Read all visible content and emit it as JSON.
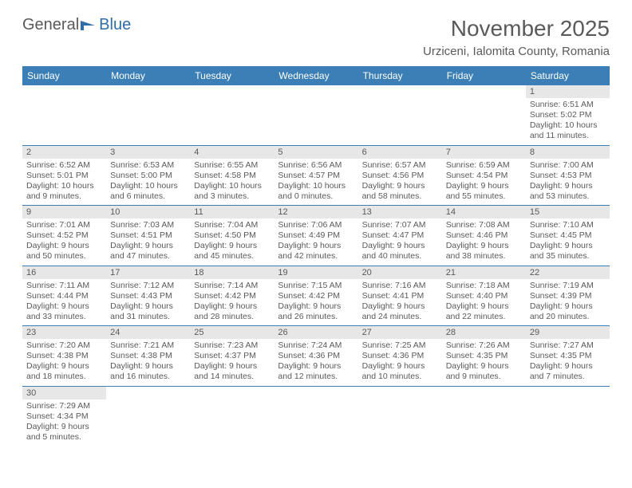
{
  "logo": {
    "text1": "General",
    "text2": "Blue"
  },
  "title": "November 2025",
  "location": "Urziceni, Ialomita County, Romania",
  "headers": [
    "Sunday",
    "Monday",
    "Tuesday",
    "Wednesday",
    "Thursday",
    "Friday",
    "Saturday"
  ],
  "colors": {
    "header_bg": "#3b7fb6",
    "header_fg": "#ffffff",
    "daynum_bg": "#e7e7e7",
    "text": "#5a5a5a",
    "logo_blue": "#2f6fa8"
  },
  "weeks": [
    [
      null,
      null,
      null,
      null,
      null,
      null,
      {
        "n": "1",
        "sr": "6:51 AM",
        "ss": "5:02 PM",
        "dl": "10 hours and 11 minutes."
      }
    ],
    [
      {
        "n": "2",
        "sr": "6:52 AM",
        "ss": "5:01 PM",
        "dl": "10 hours and 9 minutes."
      },
      {
        "n": "3",
        "sr": "6:53 AM",
        "ss": "5:00 PM",
        "dl": "10 hours and 6 minutes."
      },
      {
        "n": "4",
        "sr": "6:55 AM",
        "ss": "4:58 PM",
        "dl": "10 hours and 3 minutes."
      },
      {
        "n": "5",
        "sr": "6:56 AM",
        "ss": "4:57 PM",
        "dl": "10 hours and 0 minutes."
      },
      {
        "n": "6",
        "sr": "6:57 AM",
        "ss": "4:56 PM",
        "dl": "9 hours and 58 minutes."
      },
      {
        "n": "7",
        "sr": "6:59 AM",
        "ss": "4:54 PM",
        "dl": "9 hours and 55 minutes."
      },
      {
        "n": "8",
        "sr": "7:00 AM",
        "ss": "4:53 PM",
        "dl": "9 hours and 53 minutes."
      }
    ],
    [
      {
        "n": "9",
        "sr": "7:01 AM",
        "ss": "4:52 PM",
        "dl": "9 hours and 50 minutes."
      },
      {
        "n": "10",
        "sr": "7:03 AM",
        "ss": "4:51 PM",
        "dl": "9 hours and 47 minutes."
      },
      {
        "n": "11",
        "sr": "7:04 AM",
        "ss": "4:50 PM",
        "dl": "9 hours and 45 minutes."
      },
      {
        "n": "12",
        "sr": "7:06 AM",
        "ss": "4:49 PM",
        "dl": "9 hours and 42 minutes."
      },
      {
        "n": "13",
        "sr": "7:07 AM",
        "ss": "4:47 PM",
        "dl": "9 hours and 40 minutes."
      },
      {
        "n": "14",
        "sr": "7:08 AM",
        "ss": "4:46 PM",
        "dl": "9 hours and 38 minutes."
      },
      {
        "n": "15",
        "sr": "7:10 AM",
        "ss": "4:45 PM",
        "dl": "9 hours and 35 minutes."
      }
    ],
    [
      {
        "n": "16",
        "sr": "7:11 AM",
        "ss": "4:44 PM",
        "dl": "9 hours and 33 minutes."
      },
      {
        "n": "17",
        "sr": "7:12 AM",
        "ss": "4:43 PM",
        "dl": "9 hours and 31 minutes."
      },
      {
        "n": "18",
        "sr": "7:14 AM",
        "ss": "4:42 PM",
        "dl": "9 hours and 28 minutes."
      },
      {
        "n": "19",
        "sr": "7:15 AM",
        "ss": "4:42 PM",
        "dl": "9 hours and 26 minutes."
      },
      {
        "n": "20",
        "sr": "7:16 AM",
        "ss": "4:41 PM",
        "dl": "9 hours and 24 minutes."
      },
      {
        "n": "21",
        "sr": "7:18 AM",
        "ss": "4:40 PM",
        "dl": "9 hours and 22 minutes."
      },
      {
        "n": "22",
        "sr": "7:19 AM",
        "ss": "4:39 PM",
        "dl": "9 hours and 20 minutes."
      }
    ],
    [
      {
        "n": "23",
        "sr": "7:20 AM",
        "ss": "4:38 PM",
        "dl": "9 hours and 18 minutes."
      },
      {
        "n": "24",
        "sr": "7:21 AM",
        "ss": "4:38 PM",
        "dl": "9 hours and 16 minutes."
      },
      {
        "n": "25",
        "sr": "7:23 AM",
        "ss": "4:37 PM",
        "dl": "9 hours and 14 minutes."
      },
      {
        "n": "26",
        "sr": "7:24 AM",
        "ss": "4:36 PM",
        "dl": "9 hours and 12 minutes."
      },
      {
        "n": "27",
        "sr": "7:25 AM",
        "ss": "4:36 PM",
        "dl": "9 hours and 10 minutes."
      },
      {
        "n": "28",
        "sr": "7:26 AM",
        "ss": "4:35 PM",
        "dl": "9 hours and 9 minutes."
      },
      {
        "n": "29",
        "sr": "7:27 AM",
        "ss": "4:35 PM",
        "dl": "9 hours and 7 minutes."
      }
    ],
    [
      {
        "n": "30",
        "sr": "7:29 AM",
        "ss": "4:34 PM",
        "dl": "9 hours and 5 minutes."
      },
      null,
      null,
      null,
      null,
      null,
      null
    ]
  ]
}
